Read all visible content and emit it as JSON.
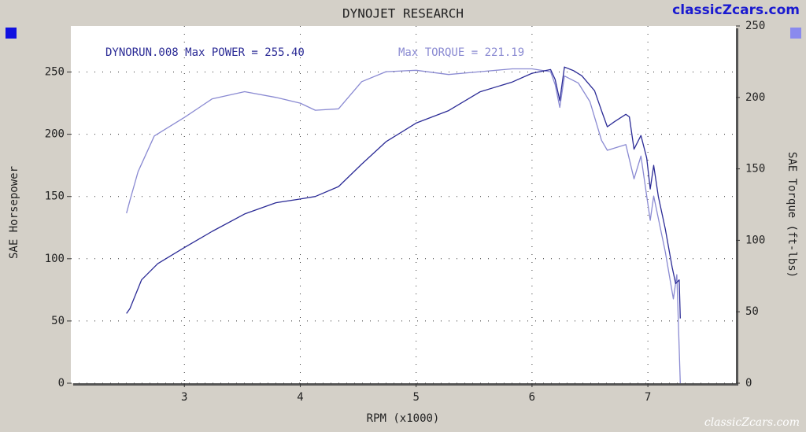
{
  "chart_data": {
    "type": "line",
    "title": "DYNOJET RESEARCH",
    "annotation_power": "DYNORUN.008 Max POWER = 255.40",
    "annotation_torque": "Max TORQUE = 221.19",
    "watermark": "classicZcars.com",
    "watermark_bottom": "classicZcars.com",
    "x_label": "RPM (x1000)",
    "y_label": "SAE Horsepower",
    "y2_label": "SAE Torque (ft-lbs)",
    "xlim": [
      2.02,
      7.76
    ],
    "xticks": [
      3,
      4,
      5,
      6,
      7
    ],
    "ylim": [
      0,
      287
    ],
    "yticks": [
      0,
      50,
      100,
      150,
      200,
      250
    ],
    "y2lim": [
      0,
      250
    ],
    "y2ticks": [
      0,
      50,
      100,
      150,
      200,
      250
    ],
    "grid": true,
    "series": [
      {
        "name": "SAE Horsepower",
        "color": "#2b2b96",
        "axis": "y",
        "x": [
          2.5,
          2.53,
          2.63,
          2.77,
          3.0,
          3.24,
          3.52,
          3.79,
          4.0,
          4.13,
          4.33,
          4.53,
          4.74,
          5.0,
          5.28,
          5.55,
          5.83,
          6.0,
          6.16,
          6.2,
          6.24,
          6.28,
          6.36,
          6.43,
          6.54,
          6.6,
          6.65,
          6.71,
          6.81,
          6.84,
          6.88,
          6.94,
          6.99,
          7.02,
          7.05,
          7.09,
          7.15,
          7.21,
          7.24,
          7.27,
          7.28
        ],
        "values": [
          56,
          60,
          83,
          96,
          109,
          122,
          136,
          145,
          148,
          150,
          158,
          176,
          194,
          209,
          219,
          234,
          242,
          249,
          252,
          244,
          227,
          254,
          251,
          247,
          235,
          219,
          206,
          210,
          216,
          214,
          188,
          199,
          181,
          156,
          175,
          150,
          124,
          93,
          80,
          83,
          52
        ]
      },
      {
        "name": "SAE Torque",
        "color": "#8a8ad2",
        "axis": "y2",
        "x": [
          2.5,
          2.53,
          2.6,
          2.74,
          3.0,
          3.24,
          3.52,
          3.79,
          4.0,
          4.13,
          4.33,
          4.53,
          4.74,
          5.0,
          5.28,
          5.55,
          5.83,
          6.0,
          6.16,
          6.2,
          6.24,
          6.28,
          6.4,
          6.5,
          6.6,
          6.65,
          6.81,
          6.88,
          6.94,
          7.02,
          7.05,
          7.15,
          7.22,
          7.25,
          7.28
        ],
        "values": [
          119,
          128,
          148,
          173,
          186,
          199,
          204,
          200,
          196,
          191,
          192,
          211,
          218,
          219,
          216,
          218,
          220,
          220,
          218,
          209,
          193,
          215,
          210,
          197,
          170,
          163,
          167,
          143,
          159,
          114,
          131,
          92,
          59,
          76,
          0
        ]
      }
    ]
  }
}
